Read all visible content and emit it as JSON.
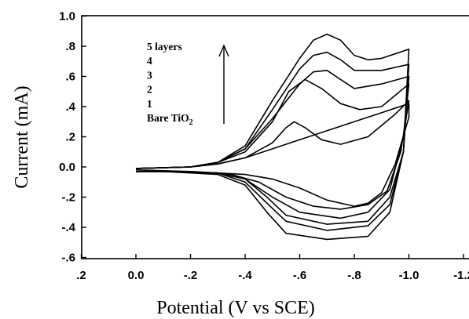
{
  "chart_data": {
    "type": "line",
    "title": "",
    "xlabel": "Potential (V vs SCE)",
    "ylabel": "Current (mA)",
    "xlim": [
      0.2,
      -1.2
    ],
    "ylim": [
      -0.6,
      1.0
    ],
    "x_reversed": true,
    "x_ticks": [
      0.2,
      0.0,
      -0.2,
      -0.4,
      -0.6,
      -0.8,
      -1.0,
      -1.2
    ],
    "x_tick_labels": [
      ".2",
      "0.0",
      "-.2",
      "-.4",
      "-.6",
      "-.8",
      "-1.0",
      "-1.2"
    ],
    "y_ticks": [
      1.0,
      0.8,
      0.6,
      0.4,
      0.2,
      0.0,
      -0.2,
      -0.4,
      -0.6
    ],
    "y_tick_labels": [
      "1.0",
      ".8",
      ".6",
      ".4",
      ".2",
      "0.0",
      "-.2",
      "-.4",
      "-.6"
    ],
    "legend": {
      "entries": [
        "5 layers",
        "4",
        "3",
        "2",
        "1"
      ],
      "last_entry_base": "Bare TiO",
      "last_entry_subscript": "2",
      "arrow_direction": "up",
      "placement": "top-left"
    },
    "series": [
      {
        "forward": [
          [
            0,
            -0.01
          ],
          [
            -0.2,
            0
          ],
          [
            -0.3,
            0.02
          ],
          [
            -0.4,
            0.06
          ],
          [
            -0.5,
            0.12
          ],
          [
            -0.6,
            0.18
          ],
          [
            -0.7,
            0.24
          ],
          [
            -0.8,
            0.3
          ],
          [
            -0.9,
            0.36
          ],
          [
            -1.0,
            0.42
          ]
        ],
        "reverse": [
          [
            -1.0,
            0.33
          ],
          [
            -0.95,
            0.02
          ],
          [
            -0.9,
            -0.17
          ],
          [
            -0.85,
            -0.24
          ],
          [
            -0.8,
            -0.26
          ],
          [
            -0.7,
            -0.22
          ],
          [
            -0.6,
            -0.14
          ],
          [
            -0.5,
            -0.08
          ],
          [
            -0.4,
            -0.05
          ],
          [
            -0.2,
            -0.03
          ],
          [
            0,
            -0.02
          ]
        ]
      },
      {
        "forward": [
          [
            0,
            -0.01
          ],
          [
            -0.2,
            0
          ],
          [
            -0.3,
            0.02
          ],
          [
            -0.4,
            0.06
          ],
          [
            -0.5,
            0.16
          ],
          [
            -0.55,
            0.26
          ],
          [
            -0.58,
            0.3
          ],
          [
            -0.62,
            0.26
          ],
          [
            -0.68,
            0.18
          ],
          [
            -0.75,
            0.15
          ],
          [
            -0.85,
            0.2
          ],
          [
            -0.95,
            0.35
          ],
          [
            -1.0,
            0.44
          ]
        ],
        "reverse": [
          [
            -1.0,
            0.44
          ],
          [
            -0.97,
            0.1
          ],
          [
            -0.92,
            -0.16
          ],
          [
            -0.85,
            -0.25
          ],
          [
            -0.75,
            -0.28
          ],
          [
            -0.65,
            -0.26
          ],
          [
            -0.55,
            -0.2
          ],
          [
            -0.45,
            -0.1
          ],
          [
            -0.35,
            -0.05
          ],
          [
            -0.2,
            -0.03
          ],
          [
            0,
            -0.03
          ]
        ]
      },
      {
        "forward": [
          [
            0,
            -0.01
          ],
          [
            -0.2,
            0
          ],
          [
            -0.3,
            0.03
          ],
          [
            -0.4,
            0.1
          ],
          [
            -0.5,
            0.3
          ],
          [
            -0.56,
            0.5
          ],
          [
            -0.62,
            0.58
          ],
          [
            -0.68,
            0.52
          ],
          [
            -0.75,
            0.42
          ],
          [
            -0.82,
            0.38
          ],
          [
            -0.9,
            0.4
          ],
          [
            -1.0,
            0.55
          ]
        ],
        "reverse": [
          [
            -1.0,
            0.55
          ],
          [
            -0.98,
            0.2
          ],
          [
            -0.93,
            -0.15
          ],
          [
            -0.85,
            -0.3
          ],
          [
            -0.75,
            -0.34
          ],
          [
            -0.6,
            -0.3
          ],
          [
            -0.5,
            -0.2
          ],
          [
            -0.4,
            -0.08
          ],
          [
            -0.3,
            -0.04
          ],
          [
            -0.1,
            -0.03
          ],
          [
            0,
            -0.03
          ]
        ]
      },
      {
        "forward": [
          [
            0,
            -0.01
          ],
          [
            -0.2,
            0
          ],
          [
            -0.3,
            0.03
          ],
          [
            -0.4,
            0.12
          ],
          [
            -0.5,
            0.32
          ],
          [
            -0.6,
            0.55
          ],
          [
            -0.65,
            0.63
          ],
          [
            -0.7,
            0.64
          ],
          [
            -0.75,
            0.58
          ],
          [
            -0.8,
            0.52
          ],
          [
            -0.9,
            0.55
          ],
          [
            -1.0,
            0.6
          ]
        ],
        "reverse": [
          [
            -1.0,
            0.6
          ],
          [
            -0.98,
            0.1
          ],
          [
            -0.93,
            -0.2
          ],
          [
            -0.85,
            -0.36
          ],
          [
            -0.7,
            -0.38
          ],
          [
            -0.55,
            -0.32
          ],
          [
            -0.48,
            -0.2
          ],
          [
            -0.4,
            -0.08
          ],
          [
            -0.3,
            -0.04
          ],
          [
            -0.1,
            -0.03
          ],
          [
            0,
            -0.03
          ]
        ]
      },
      {
        "forward": [
          [
            0,
            -0.01
          ],
          [
            -0.2,
            0
          ],
          [
            -0.3,
            0.03
          ],
          [
            -0.4,
            0.12
          ],
          [
            -0.5,
            0.38
          ],
          [
            -0.6,
            0.65
          ],
          [
            -0.65,
            0.74
          ],
          [
            -0.7,
            0.76
          ],
          [
            -0.75,
            0.71
          ],
          [
            -0.8,
            0.64
          ],
          [
            -0.9,
            0.64
          ],
          [
            -1.0,
            0.68
          ]
        ],
        "reverse": [
          [
            -1.0,
            0.68
          ],
          [
            -0.98,
            0.1
          ],
          [
            -0.93,
            -0.25
          ],
          [
            -0.85,
            -0.39
          ],
          [
            -0.7,
            -0.42
          ],
          [
            -0.55,
            -0.36
          ],
          [
            -0.48,
            -0.24
          ],
          [
            -0.4,
            -0.1
          ],
          [
            -0.3,
            -0.04
          ],
          [
            -0.1,
            -0.03
          ],
          [
            0,
            -0.03
          ]
        ]
      },
      {
        "forward": [
          [
            0,
            -0.01
          ],
          [
            -0.2,
            0
          ],
          [
            -0.3,
            0.03
          ],
          [
            -0.4,
            0.14
          ],
          [
            -0.5,
            0.44
          ],
          [
            -0.6,
            0.72
          ],
          [
            -0.65,
            0.84
          ],
          [
            -0.7,
            0.88
          ],
          [
            -0.75,
            0.84
          ],
          [
            -0.8,
            0.74
          ],
          [
            -0.85,
            0.71
          ],
          [
            -0.9,
            0.72
          ],
          [
            -1.0,
            0.78
          ]
        ],
        "reverse": [
          [
            -1.0,
            0.78
          ],
          [
            -0.98,
            0.1
          ],
          [
            -0.93,
            -0.3
          ],
          [
            -0.85,
            -0.46
          ],
          [
            -0.7,
            -0.48
          ],
          [
            -0.55,
            -0.44
          ],
          [
            -0.48,
            -0.3
          ],
          [
            -0.4,
            -0.12
          ],
          [
            -0.3,
            -0.05
          ],
          [
            -0.1,
            -0.03
          ],
          [
            0,
            -0.03
          ]
        ]
      }
    ]
  }
}
